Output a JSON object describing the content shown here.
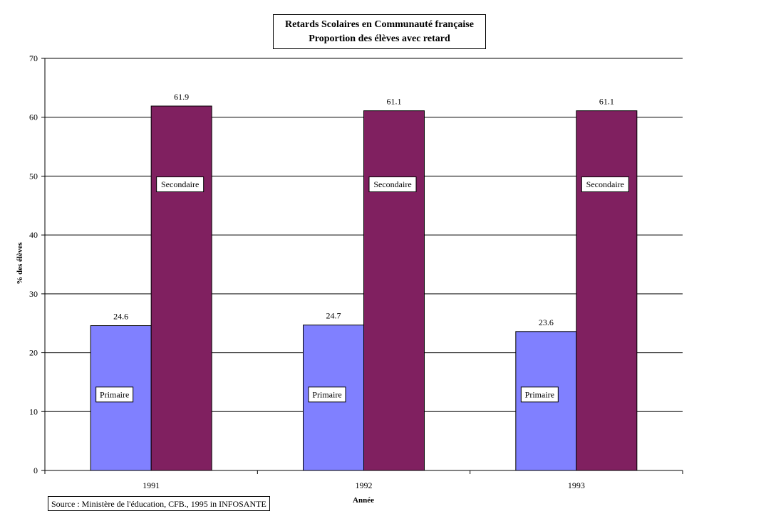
{
  "chart_data": {
    "type": "bar",
    "title": "Retards Scolaires en Communauté française",
    "subtitle": "Proportion des élèves avec retard",
    "xlabel": "Année",
    "ylabel": "% des élèves",
    "categories": [
      "1991",
      "1992",
      "1993"
    ],
    "ylim": [
      0,
      70
    ],
    "yticks": [
      "0",
      "10",
      "20",
      "30",
      "40",
      "50",
      "60",
      "70"
    ],
    "grid": true,
    "series": [
      {
        "name": "Primaire",
        "values": [
          24.6,
          24.7,
          23.6
        ],
        "color": "#8080ff"
      },
      {
        "name": "Secondaire",
        "values": [
          61.9,
          61.1,
          61.1
        ],
        "color": "#802060"
      }
    ],
    "data_labels": [
      [
        "24.6",
        "24.7",
        "23.6"
      ],
      [
        "61.9",
        "61.1",
        "61.1"
      ]
    ],
    "source": "Source : Ministère de l'éducation, CFB., 1995  in INFOSANTE"
  }
}
